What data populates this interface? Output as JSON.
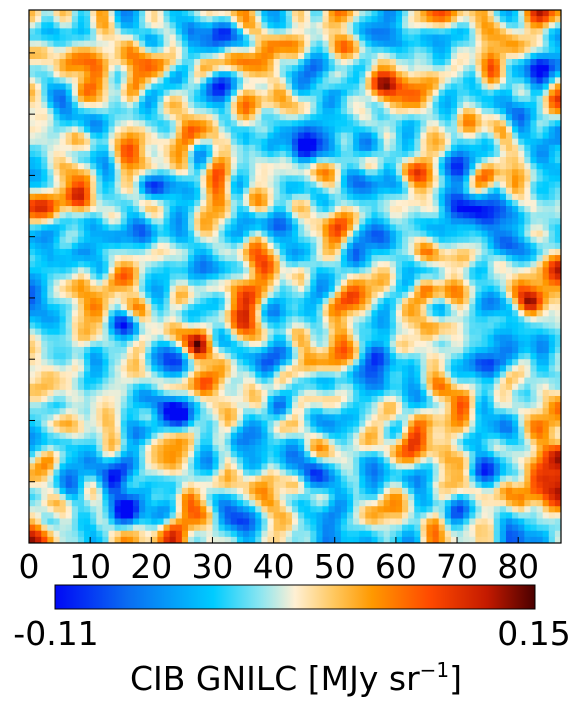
{
  "chart_data": {
    "type": "heatmap",
    "title": "",
    "x_axis": {
      "range": [
        0,
        87
      ],
      "ticks": [
        0,
        10,
        20,
        30,
        40,
        50,
        60,
        70,
        80
      ],
      "tick_labels": [
        "0",
        "10",
        "20",
        "30",
        "40",
        "50",
        "60",
        "70",
        "80"
      ]
    },
    "y_axis": {
      "range": [
        0,
        87
      ],
      "tick_labels_visible": false
    },
    "grid_size": [
      87,
      87
    ],
    "color_scale": {
      "min": -0.11,
      "max": 0.15,
      "min_label": "-0.11",
      "max_label": "0.15",
      "label_prefix": "CIB GNILC [MJy sr",
      "label_exp": "−1",
      "label_suffix": "]",
      "colors": [
        "#0008f5",
        "#0a6cf2",
        "#00ccff",
        "#8fe6f0",
        "#fff0d4",
        "#ffc860",
        "#ff9900",
        "#ff4a00",
        "#c41a00",
        "#4a0000"
      ],
      "stops": [
        0.0,
        0.15,
        0.33,
        0.43,
        0.5,
        0.58,
        0.66,
        0.78,
        0.9,
        1.0
      ]
    },
    "hotspots": [
      {
        "x": 17,
        "y": 65,
        "value": 0.1
      },
      {
        "x": 8,
        "y": 56,
        "value": 0.09
      },
      {
        "x": 3,
        "y": 55,
        "value": 0.08
      },
      {
        "x": 58,
        "y": 75,
        "value": 0.1
      },
      {
        "x": 65,
        "y": 47,
        "value": 0.12
      },
      {
        "x": 65,
        "y": 41,
        "value": 0.11
      },
      {
        "x": 82,
        "y": 39,
        "value": 0.09
      },
      {
        "x": 28,
        "y": 32,
        "value": 0.1
      },
      {
        "x": 26,
        "y": 8,
        "value": 0.13
      },
      {
        "x": 72,
        "y": 14,
        "value": 0.09
      },
      {
        "x": 75,
        "y": 60,
        "value": 0.08
      },
      {
        "x": 3,
        "y": 13,
        "value": 0.08
      },
      {
        "x": 62,
        "y": 85,
        "value": 0.07
      },
      {
        "x": 87,
        "y": 15,
        "value": 0.08
      },
      {
        "x": 45,
        "y": 86,
        "value": 0.09
      }
    ],
    "coldspots": [
      {
        "x": 70,
        "y": 54,
        "value": -0.11
      },
      {
        "x": 80,
        "y": 70,
        "value": -0.09
      },
      {
        "x": 73,
        "y": 29,
        "value": -0.08
      },
      {
        "x": 20,
        "y": 58,
        "value": -0.08
      },
      {
        "x": 45,
        "y": 65,
        "value": -0.08
      },
      {
        "x": 7,
        "y": 9,
        "value": -0.08
      },
      {
        "x": 25,
        "y": 20,
        "value": -0.09
      },
      {
        "x": 70,
        "y": 5,
        "value": -0.08
      },
      {
        "x": 15,
        "y": 36,
        "value": -0.07
      },
      {
        "x": 47,
        "y": 40,
        "value": -0.08
      }
    ],
    "legend": "horizontal colorbar below plot"
  }
}
